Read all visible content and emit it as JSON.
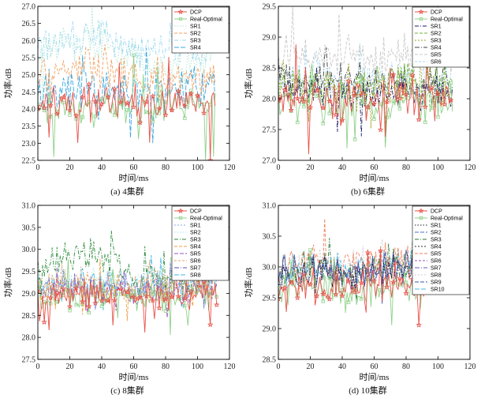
{
  "chart_data": [
    {
      "type": "line",
      "caption": "(a) 4集群",
      "xlabel": "时间/ms",
      "ylabel": "功率/dB",
      "xlim": [
        0,
        120
      ],
      "ylim": [
        22.5,
        27.0
      ],
      "xticks": [
        0,
        20,
        40,
        60,
        80,
        100,
        120
      ],
      "yticks": [
        22.5,
        23.0,
        23.5,
        24.0,
        24.5,
        25.0,
        25.5,
        26.0,
        26.5,
        27.0
      ],
      "ytick_labels": [
        "22.5",
        "23.0",
        "23.5",
        "24.0",
        "24.5",
        "25.0",
        "25.5",
        "26.0",
        "26.5",
        "27.0"
      ],
      "x_end": 111,
      "marker_every": 4,
      "seed": 11,
      "series": [
        {
          "name": "DCP",
          "color": "#e8524a",
          "dash": "",
          "marker": "star",
          "base": 24.2,
          "amp": 0.45,
          "spike": 1.6,
          "drift": 0.0
        },
        {
          "name": "Real-Optimal",
          "color": "#8fd18a",
          "dash": "",
          "marker": "square",
          "base": 24.1,
          "amp": 0.42,
          "spike": 1.4,
          "drift": 0.0
        },
        {
          "name": "SR1",
          "color": "#a8e4d0",
          "dash": "1.5,2",
          "marker": "",
          "base": 25.6,
          "amp": 0.45,
          "spike": 1.0,
          "drift": 0.4
        },
        {
          "name": "SR2",
          "color": "#f0a060",
          "dash": "4,2",
          "marker": "",
          "base": 25.0,
          "amp": 0.5,
          "spike": 0.9,
          "drift": 0.2
        },
        {
          "name": "SR3",
          "color": "#9bd8f0",
          "dash": "5,2,1,2",
          "marker": "",
          "base": 25.9,
          "amp": 0.45,
          "spike": 0.8,
          "drift": 0.2
        },
        {
          "name": "SR4",
          "color": "#3aa8e0",
          "dash": "6,2",
          "marker": "",
          "base": 24.6,
          "amp": 0.55,
          "spike": 1.2,
          "drift": 0.0
        }
      ]
    },
    {
      "type": "line",
      "caption": "(b) 6集群",
      "xlabel": "时间/ms",
      "ylabel": "功率/dB",
      "xlim": [
        0,
        120
      ],
      "ylim": [
        27.0,
        29.5
      ],
      "xticks": [
        0,
        20,
        40,
        60,
        80,
        100,
        120
      ],
      "yticks": [
        27.0,
        27.5,
        28.0,
        28.5,
        29.0,
        29.5
      ],
      "ytick_labels": [
        "27.0",
        "27.5",
        "28.0",
        "28.5",
        "29.0",
        "29.5"
      ],
      "x_end": 109,
      "marker_every": 4,
      "seed": 23,
      "series": [
        {
          "name": "DCP",
          "color": "#e8524a",
          "dash": "",
          "marker": "star",
          "base": 28.0,
          "amp": 0.28,
          "spike": 0.7,
          "drift": 0.0
        },
        {
          "name": "Real-Optimal",
          "color": "#8fd18a",
          "dash": "",
          "marker": "square",
          "base": 27.95,
          "amp": 0.27,
          "spike": 0.6,
          "drift": 0.0
        },
        {
          "name": "SR1",
          "color": "#1a1a6a",
          "dash": "5,2,1,2",
          "marker": "",
          "base": 28.1,
          "amp": 0.25,
          "spike": 0.5,
          "drift": 0.0
        },
        {
          "name": "SR2",
          "color": "#6ab43a",
          "dash": "4,2",
          "marker": "",
          "base": 28.25,
          "amp": 0.28,
          "spike": 0.5,
          "drift": 0.0
        },
        {
          "name": "SR3",
          "color": "#a0a020",
          "dash": "2,2",
          "marker": "",
          "base": 28.2,
          "amp": 0.28,
          "spike": 0.5,
          "drift": 0.0
        },
        {
          "name": "SR4",
          "color": "#404040",
          "dash": "6,2,1,2",
          "marker": "",
          "base": 28.3,
          "amp": 0.25,
          "spike": 0.45,
          "drift": 0.0
        },
        {
          "name": "SR5",
          "color": "#c8c8c8",
          "dash": "4,2",
          "marker": "",
          "base": 28.7,
          "amp": 0.3,
          "spike": 0.5,
          "drift": 0.0
        },
        {
          "name": "SR6",
          "color": "#a8d8f0",
          "dash": "3,2",
          "marker": "",
          "base": 28.35,
          "amp": 0.25,
          "spike": 0.45,
          "drift": 0.0
        }
      ]
    },
    {
      "type": "line",
      "caption": "(c) 8集群",
      "xlabel": "时间/ms",
      "ylabel": "功率/dB",
      "xlim": [
        0,
        120
      ],
      "ylim": [
        27.5,
        31.0
      ],
      "xticks": [
        0,
        20,
        40,
        60,
        80,
        100,
        120
      ],
      "yticks": [
        27.5,
        28.0,
        28.5,
        29.0,
        29.5,
        30.0,
        30.5,
        31.0
      ],
      "ytick_labels": [
        "27.5",
        "28.0",
        "28.5",
        "29.0",
        "29.5",
        "30.0",
        "30.5",
        "31.0"
      ],
      "x_end": 112,
      "marker_every": 4,
      "seed": 37,
      "series": [
        {
          "name": "DCP",
          "color": "#e8524a",
          "dash": "",
          "marker": "star",
          "base": 28.95,
          "amp": 0.28,
          "spike": 0.9,
          "drift": 0.0
        },
        {
          "name": "Real-Optimal",
          "color": "#8fd18a",
          "dash": "",
          "marker": "square",
          "base": 28.9,
          "amp": 0.27,
          "spike": 0.85,
          "drift": 0.0
        },
        {
          "name": "SR1",
          "color": "#8aa8e8",
          "dash": "2,2",
          "marker": "",
          "base": 29.15,
          "amp": 0.27,
          "spike": 0.5,
          "drift": 0.0
        },
        {
          "name": "SR2",
          "color": "#a8e8e0",
          "dash": "1.5,2",
          "marker": "",
          "base": 29.3,
          "amp": 0.28,
          "spike": 0.5,
          "drift": 0.0
        },
        {
          "name": "SR3",
          "color": "#2a8a3a",
          "dash": "5,2,1,2",
          "marker": "",
          "base": 29.6,
          "amp": 0.32,
          "spike": 0.6,
          "drift": 0.3
        },
        {
          "name": "SR4",
          "color": "#f0a040",
          "dash": "4,2",
          "marker": "",
          "base": 29.1,
          "amp": 0.28,
          "spike": 0.5,
          "drift": 0.0
        },
        {
          "name": "SR5",
          "color": "#9a50c0",
          "dash": "5,2",
          "marker": "",
          "base": 29.05,
          "amp": 0.26,
          "spike": 0.5,
          "drift": 0.0
        },
        {
          "name": "SR6",
          "color": "#e8a070",
          "dash": "3,2",
          "marker": "",
          "base": 29.25,
          "amp": 0.27,
          "spike": 0.5,
          "drift": 0.0
        },
        {
          "name": "SR7",
          "color": "#5a4ab0",
          "dash": "6,2,1,2",
          "marker": "",
          "base": 29.15,
          "amp": 0.26,
          "spike": 0.45,
          "drift": 0.0
        },
        {
          "name": "SR8",
          "color": "#40b8e8",
          "dash": "6,2",
          "marker": "",
          "base": 29.2,
          "amp": 0.27,
          "spike": 0.5,
          "drift": 0.0
        }
      ]
    },
    {
      "type": "line",
      "caption": "(d) 10集群",
      "xlabel": "时间/ms",
      "ylabel": "功率/dB",
      "xlim": [
        0,
        120
      ],
      "ylim": [
        28.5,
        31.0
      ],
      "xticks": [
        0,
        20,
        40,
        60,
        80,
        100,
        120
      ],
      "yticks": [
        28.5,
        29.0,
        29.5,
        30.0,
        30.5,
        31.0
      ],
      "ytick_labels": [
        "28.5",
        "29.0",
        "29.5",
        "30.0",
        "30.5",
        "31.0"
      ],
      "x_end": 93,
      "marker_every": 4,
      "seed": 53,
      "series": [
        {
          "name": "DCP",
          "color": "#e8524a",
          "dash": "",
          "marker": "star",
          "base": 29.7,
          "amp": 0.25,
          "spike": 0.6,
          "drift": 0.0
        },
        {
          "name": "Real-Optimal",
          "color": "#8fd18a",
          "dash": "",
          "marker": "square",
          "base": 29.65,
          "amp": 0.25,
          "spike": 0.55,
          "drift": 0.0
        },
        {
          "name": "SR1",
          "color": "#202020",
          "dash": "1.5,2",
          "marker": "",
          "base": 29.9,
          "amp": 0.22,
          "spike": 0.4,
          "drift": 0.0
        },
        {
          "name": "SR2",
          "color": "#4a70c8",
          "dash": "5,2",
          "marker": "",
          "base": 29.95,
          "amp": 0.24,
          "spike": 0.4,
          "drift": 0.0
        },
        {
          "name": "SR3",
          "color": "#2a7a3a",
          "dash": "5,2,1,2",
          "marker": "",
          "base": 30.0,
          "amp": 0.25,
          "spike": 0.4,
          "drift": 0.0
        },
        {
          "name": "SR4",
          "color": "#303030",
          "dash": "2,2",
          "marker": "",
          "base": 29.95,
          "amp": 0.22,
          "spike": 0.4,
          "drift": 0.0
        },
        {
          "name": "SR5",
          "color": "#f08060",
          "dash": "4,2",
          "marker": "",
          "base": 30.1,
          "amp": 0.26,
          "spike": 0.5,
          "drift": 0.0
        },
        {
          "name": "SR6",
          "color": "#9a50c0",
          "dash": "3,2",
          "marker": "",
          "base": 29.9,
          "amp": 0.23,
          "spike": 0.4,
          "drift": 0.0
        },
        {
          "name": "SR7",
          "color": "#6a5ab8",
          "dash": "6,2,1,2",
          "marker": "",
          "base": 29.95,
          "amp": 0.23,
          "spike": 0.4,
          "drift": 0.0
        },
        {
          "name": "SR8",
          "color": "#d0d0d0",
          "dash": "2,2",
          "marker": "",
          "base": 30.05,
          "amp": 0.24,
          "spike": 0.4,
          "drift": 0.0
        },
        {
          "name": "SR9",
          "color": "#3a5aa8",
          "dash": "5,2",
          "marker": "",
          "base": 29.9,
          "amp": 0.22,
          "spike": 0.4,
          "drift": 0.0
        },
        {
          "name": "SR10",
          "color": "#48b8e8",
          "dash": "6,2",
          "marker": "",
          "base": 30.0,
          "amp": 0.24,
          "spike": 0.4,
          "drift": 0.0
        }
      ]
    }
  ]
}
